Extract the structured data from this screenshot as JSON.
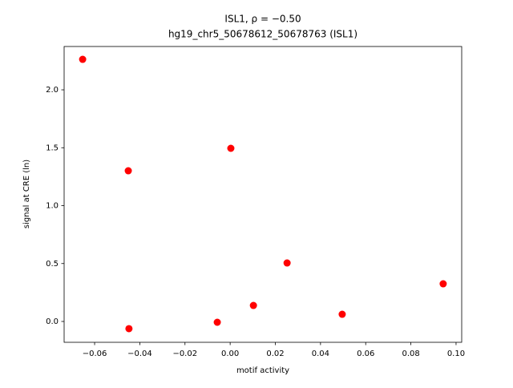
{
  "chart_data": {
    "type": "scatter",
    "title": "ISL1, ρ = −0.50",
    "subtitle": "hg19_chr5_50678612_50678763 (ISL1)",
    "x_label": "motif activity",
    "y_label": "signal at CRE (ln)",
    "color": "#ff0000",
    "x": [
      -0.0653,
      -0.0451,
      0.0003,
      0.0252,
      0.0943,
      0.0103,
      0.0496,
      -0.0057,
      -0.0448
    ],
    "values": [
      2.263,
      1.301,
      1.495,
      0.505,
      0.325,
      0.138,
      0.062,
      -0.007,
      -0.062
    ],
    "xlim": [
      -0.0735,
      0.1025
    ],
    "ylim": [
      -0.18,
      2.374
    ],
    "xticks": [
      {
        "value": -0.06,
        "label": "−0.06"
      },
      {
        "value": -0.04,
        "label": "−0.04"
      },
      {
        "value": -0.02,
        "label": "−0.02"
      },
      {
        "value": 0,
        "label": "0.00"
      },
      0.02,
      0.04,
      0.06,
      0.08,
      {
        "value": 0.1,
        "label": "0.10"
      }
    ],
    "yticks": [
      {
        "value": 0,
        "label": "0.0"
      },
      0.5,
      {
        "value": 1,
        "label": "1.0"
      },
      1.5,
      {
        "value": 2,
        "label": "2.0"
      }
    ]
  }
}
